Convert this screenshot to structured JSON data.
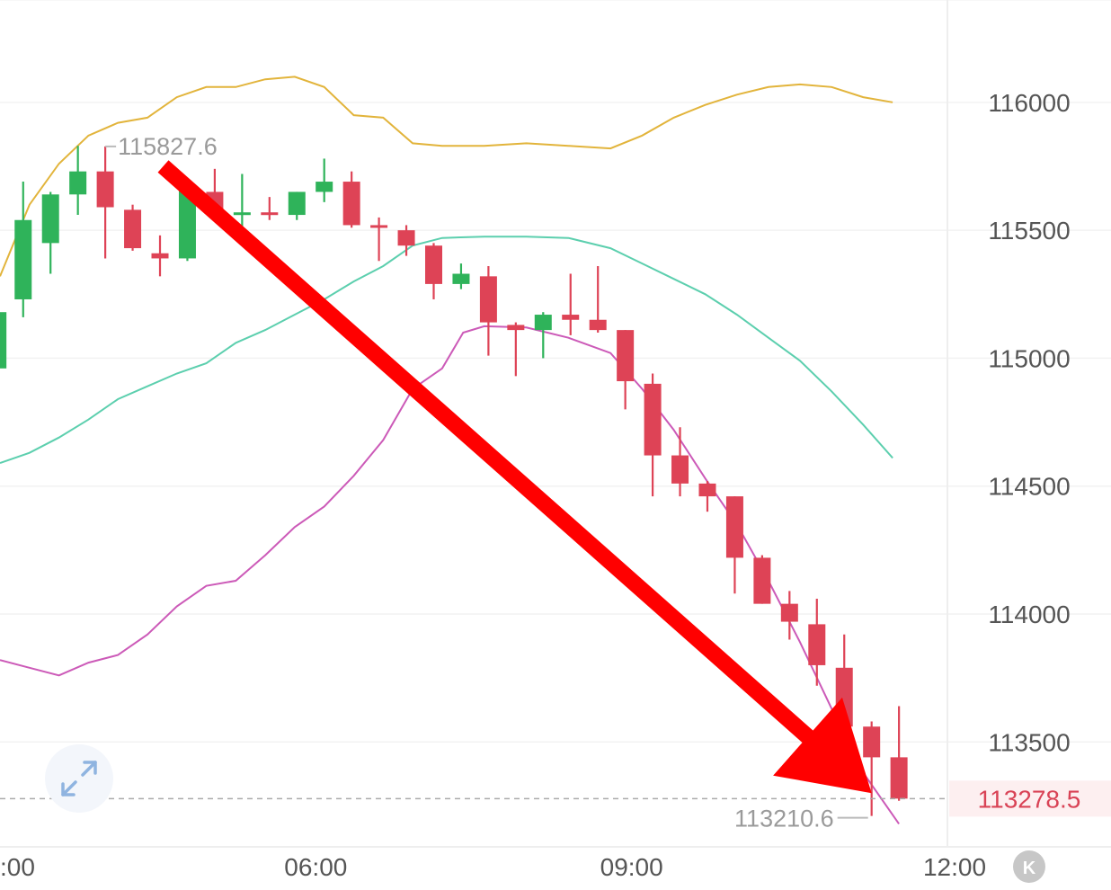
{
  "chart_data": {
    "type": "candlestick",
    "y_ticks": [
      "116000",
      "115500",
      "115000",
      "114500",
      "114000",
      "113500"
    ],
    "y_tick_values": [
      116000,
      115500,
      115000,
      114500,
      114000,
      113500
    ],
    "ylim": [
      113090,
      116400
    ],
    "x_ticks": [
      ":00",
      "06:00",
      "09:00",
      "12:00"
    ],
    "x_tick_values": [
      3,
      6,
      9,
      12
    ],
    "xlim": [
      3.0,
      12.0
    ],
    "grid": true,
    "colors": {
      "up": "#2fb35a",
      "down": "#de4356",
      "upper_band": "#e2b43b",
      "middle_band": "#5ccfae",
      "lower_band": "#cc5ab8",
      "arrow": "#ff0000",
      "current_price": "#d94356"
    },
    "candles": [
      {
        "t": 2.98,
        "o": 114960,
        "h": 115220,
        "l": 114910,
        "c": 115180
      },
      {
        "t": 3.22,
        "o": 115230,
        "h": 115690,
        "l": 115160,
        "c": 115540
      },
      {
        "t": 3.48,
        "o": 115450,
        "h": 115650,
        "l": 115330,
        "c": 115640
      },
      {
        "t": 3.74,
        "o": 115640,
        "h": 115830,
        "l": 115560,
        "c": 115730
      },
      {
        "t": 4.0,
        "o": 115730,
        "h": 115827.6,
        "l": 115390,
        "c": 115590
      },
      {
        "t": 4.26,
        "o": 115580,
        "h": 115600,
        "l": 115420,
        "c": 115430
      },
      {
        "t": 4.52,
        "o": 115410,
        "h": 115480,
        "l": 115320,
        "c": 115390
      },
      {
        "t": 4.78,
        "o": 115390,
        "h": 115700,
        "l": 115380,
        "c": 115660
      },
      {
        "t": 5.04,
        "o": 115650,
        "h": 115740,
        "l": 115540,
        "c": 115570
      },
      {
        "t": 5.3,
        "o": 115570,
        "h": 115720,
        "l": 115490,
        "c": 115570
      },
      {
        "t": 5.56,
        "o": 115570,
        "h": 115630,
        "l": 115540,
        "c": 115560
      },
      {
        "t": 5.82,
        "o": 115560,
        "h": 115650,
        "l": 115540,
        "c": 115650
      },
      {
        "t": 6.08,
        "o": 115650,
        "h": 115780,
        "l": 115610,
        "c": 115690
      },
      {
        "t": 6.34,
        "o": 115690,
        "h": 115730,
        "l": 115510,
        "c": 115520
      },
      {
        "t": 6.6,
        "o": 115520,
        "h": 115550,
        "l": 115380,
        "c": 115510
      },
      {
        "t": 6.86,
        "o": 115500,
        "h": 115520,
        "l": 115400,
        "c": 115440
      },
      {
        "t": 7.12,
        "o": 115440,
        "h": 115450,
        "l": 115230,
        "c": 115290
      },
      {
        "t": 7.38,
        "o": 115290,
        "h": 115370,
        "l": 115270,
        "c": 115330
      },
      {
        "t": 7.64,
        "o": 115320,
        "h": 115360,
        "l": 115010,
        "c": 115140
      },
      {
        "t": 7.9,
        "o": 115130,
        "h": 115140,
        "l": 114930,
        "c": 115110
      },
      {
        "t": 8.16,
        "o": 115110,
        "h": 115180,
        "l": 115000,
        "c": 115170
      },
      {
        "t": 8.42,
        "o": 115170,
        "h": 115330,
        "l": 115090,
        "c": 115150
      },
      {
        "t": 8.68,
        "o": 115150,
        "h": 115360,
        "l": 115100,
        "c": 115110
      },
      {
        "t": 8.94,
        "o": 115110,
        "h": 115110,
        "l": 114800,
        "c": 114910
      },
      {
        "t": 9.2,
        "o": 114900,
        "h": 114940,
        "l": 114460,
        "c": 114620
      },
      {
        "t": 9.46,
        "o": 114620,
        "h": 114730,
        "l": 114460,
        "c": 114510
      },
      {
        "t": 9.72,
        "o": 114510,
        "h": 114520,
        "l": 114400,
        "c": 114460
      },
      {
        "t": 9.98,
        "o": 114460,
        "h": 114460,
        "l": 114080,
        "c": 114220
      },
      {
        "t": 10.24,
        "o": 114220,
        "h": 114230,
        "l": 114040,
        "c": 114040
      },
      {
        "t": 10.5,
        "o": 114040,
        "h": 114090,
        "l": 113900,
        "c": 113970
      },
      {
        "t": 10.76,
        "o": 113960,
        "h": 114060,
        "l": 113720,
        "c": 113800
      },
      {
        "t": 11.02,
        "o": 113790,
        "h": 113920,
        "l": 113560,
        "c": 113560
      },
      {
        "t": 11.28,
        "o": 113560,
        "h": 113580,
        "l": 113210.6,
        "c": 113440
      },
      {
        "t": 11.54,
        "o": 113440,
        "h": 113640,
        "l": 113270,
        "c": 113278.5
      }
    ],
    "bands": {
      "upper": [
        [
          3.0,
          115320
        ],
        [
          3.28,
          115600
        ],
        [
          3.56,
          115760
        ],
        [
          3.84,
          115870
        ],
        [
          4.12,
          115920
        ],
        [
          4.4,
          115940
        ],
        [
          4.68,
          116020
        ],
        [
          4.96,
          116060
        ],
        [
          5.24,
          116060
        ],
        [
          5.52,
          116090
        ],
        [
          5.8,
          116100
        ],
        [
          6.08,
          116060
        ],
        [
          6.36,
          115950
        ],
        [
          6.64,
          115940
        ],
        [
          6.92,
          115840
        ],
        [
          7.2,
          115830
        ],
        [
          7.6,
          115830
        ],
        [
          8.0,
          115840
        ],
        [
          8.4,
          115830
        ],
        [
          8.8,
          115820
        ],
        [
          9.1,
          115870
        ],
        [
          9.4,
          115940
        ],
        [
          9.7,
          115990
        ],
        [
          10.0,
          116030
        ],
        [
          10.3,
          116060
        ],
        [
          10.6,
          116070
        ],
        [
          10.9,
          116060
        ],
        [
          11.2,
          116020
        ],
        [
          11.48,
          116000
        ]
      ],
      "middle": [
        [
          3.0,
          114590
        ],
        [
          3.28,
          114630
        ],
        [
          3.56,
          114690
        ],
        [
          3.84,
          114760
        ],
        [
          4.12,
          114840
        ],
        [
          4.4,
          114890
        ],
        [
          4.68,
          114940
        ],
        [
          4.96,
          114980
        ],
        [
          5.24,
          115060
        ],
        [
          5.52,
          115110
        ],
        [
          5.8,
          115170
        ],
        [
          6.08,
          115230
        ],
        [
          6.36,
          115300
        ],
        [
          6.64,
          115360
        ],
        [
          6.92,
          115440
        ],
        [
          7.2,
          115470
        ],
        [
          7.6,
          115475
        ],
        [
          8.0,
          115475
        ],
        [
          8.4,
          115470
        ],
        [
          8.8,
          115430
        ],
        [
          9.1,
          115370
        ],
        [
          9.4,
          115310
        ],
        [
          9.7,
          115250
        ],
        [
          10.0,
          115170
        ],
        [
          10.3,
          115080
        ],
        [
          10.6,
          114990
        ],
        [
          10.9,
          114870
        ],
        [
          11.2,
          114740
        ],
        [
          11.48,
          114610
        ]
      ],
      "lower": [
        [
          3.0,
          113820
        ],
        [
          3.28,
          113790
        ],
        [
          3.56,
          113760
        ],
        [
          3.84,
          113810
        ],
        [
          4.12,
          113840
        ],
        [
          4.4,
          113920
        ],
        [
          4.68,
          114030
        ],
        [
          4.96,
          114110
        ],
        [
          5.24,
          114130
        ],
        [
          5.52,
          114230
        ],
        [
          5.8,
          114340
        ],
        [
          6.08,
          114420
        ],
        [
          6.36,
          114540
        ],
        [
          6.64,
          114680
        ],
        [
          6.92,
          114880
        ],
        [
          7.2,
          114960
        ],
        [
          7.4,
          115100
        ],
        [
          7.6,
          115125
        ],
        [
          8.0,
          115120
        ],
        [
          8.4,
          115080
        ],
        [
          8.8,
          115020
        ],
        [
          9.1,
          114880
        ],
        [
          9.4,
          114720
        ],
        [
          9.7,
          114530
        ],
        [
          10.0,
          114350
        ],
        [
          10.3,
          114130
        ],
        [
          10.6,
          113890
        ],
        [
          10.9,
          113630
        ],
        [
          11.2,
          113380
        ],
        [
          11.54,
          113180
        ]
      ]
    },
    "annotations": {
      "high_label": "115827.6",
      "high_value": 115827.6,
      "high_t": 4.0,
      "low_label": "113210.6",
      "low_value": 113210.6,
      "low_t": 11.28
    },
    "current_price": {
      "label": "113278.5",
      "value": 113278.5
    },
    "trend_arrow": {
      "from": [
        4.55,
        115750
      ],
      "to": [
        11.28,
        113300
      ]
    }
  },
  "icons": {
    "expand": "expand-arrows-icon",
    "collapse_axis": "k-circle-icon"
  },
  "collapse_button_label": "K"
}
